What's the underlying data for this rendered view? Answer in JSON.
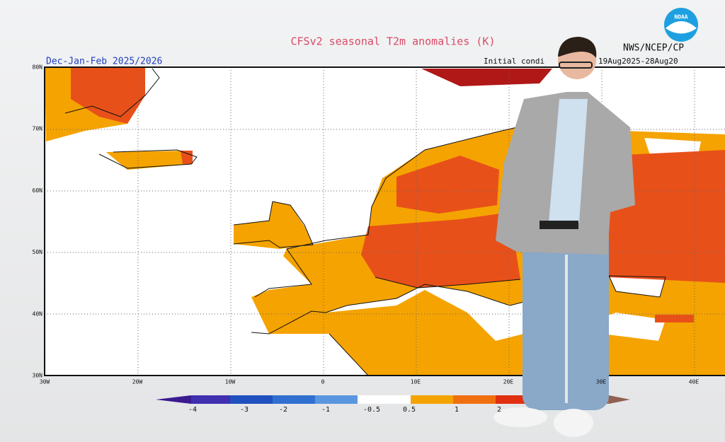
{
  "title": "CFSv2 seasonal T2m anomalies (K)",
  "period": "Dec-Jan-Feb 2025/2026",
  "initial_conditions": [
    "Initial condi",
    "19Aug2025-28Aug20"
  ],
  "source": "NWS/NCEP/CP",
  "logo": "NOAA",
  "lat_labels": [
    "80N",
    "70N",
    "60N",
    "50N",
    "40N",
    "30N"
  ],
  "lon_labels": [
    "30W",
    "20W",
    "10W",
    "0",
    "10E",
    "20E",
    "30E",
    "40E"
  ],
  "colorbar": {
    "labels": [
      "-4",
      "-3",
      "-2",
      "-1",
      "-0.5",
      "0.5",
      "1",
      "2"
    ]
  }
}
